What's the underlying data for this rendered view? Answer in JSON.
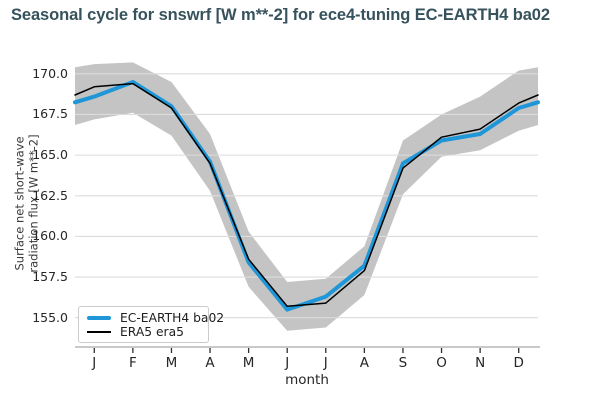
{
  "title": "Seasonal cycle for snswrf [W m**-2] for ece4-tuning EC-EARTH4 ba02",
  "colors": {
    "title": "#36525c",
    "model_line": "#1e96d7",
    "ref_line": "#000000",
    "band": "#c4c4c4",
    "grid": "#dcdcdc",
    "axis_line": "#c9c9c9",
    "tick_mark": "#2f2f2f",
    "tick_text": "#262626"
  },
  "legend": {
    "items": [
      {
        "label": "EC-EARTH4 ba02",
        "style": "thick-blue-line"
      },
      {
        "label": "ERA5 era5",
        "style": "thin-black-line"
      }
    ]
  },
  "chart_data": {
    "type": "line",
    "title": "Seasonal cycle for snswrf [W m**-2] for ece4-tuning EC-EARTH4 ba02",
    "xlabel": "month",
    "ylabel": "Surface net short-wave radiation flux [W m**-2]",
    "ylabel_lines": [
      "Surface net short-wave",
      "radiation flux [W m**-2]"
    ],
    "categories": [
      "J",
      "F",
      "M",
      "A",
      "M",
      "J",
      "J",
      "A",
      "S",
      "O",
      "N",
      "D"
    ],
    "yticks": [
      155.0,
      157.5,
      160.0,
      162.5,
      165.0,
      167.5,
      170.0
    ],
    "ylim": [
      153.2,
      170.85
    ],
    "grid": "horizontal",
    "legend_position": "lower-left",
    "series": [
      {
        "name": "EC-EARTH4 ba02",
        "color": "#1e96d7",
        "width": 4,
        "values": [
          168.6,
          169.5,
          168.0,
          164.6,
          158.4,
          155.5,
          156.3,
          158.2,
          164.5,
          165.9,
          166.3,
          167.9
        ]
      },
      {
        "name": "ERA5 era5",
        "color": "#000000",
        "width": 1.5,
        "values": [
          169.2,
          169.4,
          167.9,
          164.5,
          158.6,
          155.7,
          155.9,
          157.9,
          164.2,
          166.1,
          166.6,
          168.2
        ]
      }
    ],
    "band": {
      "around_series": "ERA5 era5",
      "color": "#c4c4c4",
      "upper": [
        170.6,
        170.7,
        169.5,
        166.3,
        160.3,
        157.2,
        157.4,
        159.4,
        165.9,
        167.5,
        168.6,
        170.2
      ],
      "lower": [
        167.2,
        167.6,
        166.2,
        162.8,
        156.9,
        154.2,
        154.4,
        156.4,
        162.6,
        164.9,
        165.3,
        166.5
      ]
    },
    "wrap_edges": true
  }
}
